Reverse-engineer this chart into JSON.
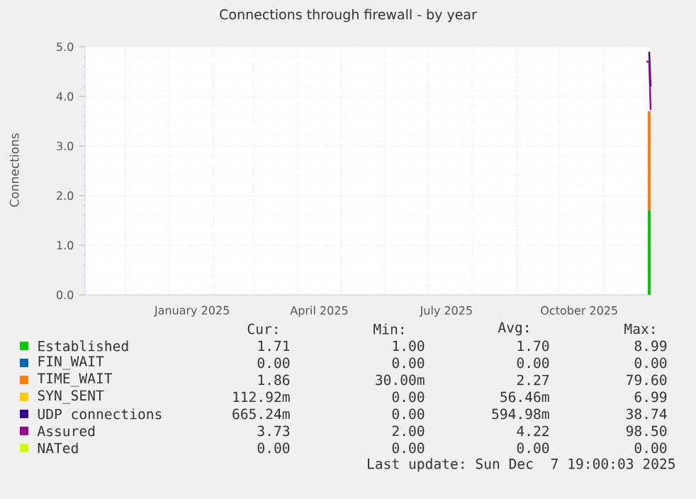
{
  "chart_data": {
    "type": "area",
    "title": "Connections through firewall - by year",
    "ylabel": "Connections",
    "stacked": true,
    "grid": true,
    "legend": "bottom",
    "xlim": [
      "2024-11-03",
      "2025-12-04"
    ],
    "ylim": [
      0,
      5
    ],
    "xticks": [
      {
        "value": "2025-01-17",
        "label": "January 2025"
      },
      {
        "value": "2025-04-16",
        "label": "April 2025"
      },
      {
        "value": "2025-07-14",
        "label": "July 2025"
      },
      {
        "value": "2025-10-15",
        "label": "October 2025"
      },
      {
        "value": "2024-12-01",
        "label": null
      },
      {
        "value": "2025-01-01",
        "label": null
      },
      {
        "value": "2025-02-01",
        "label": null
      },
      {
        "value": "2025-03-01",
        "label": null
      },
      {
        "value": "2025-04-01",
        "label": null
      },
      {
        "value": "2025-05-01",
        "label": null
      },
      {
        "value": "2025-06-01",
        "label": null
      },
      {
        "value": "2025-07-01",
        "label": null
      },
      {
        "value": "2025-08-01",
        "label": null
      },
      {
        "value": "2025-09-01",
        "label": null
      },
      {
        "value": "2025-10-01",
        "label": null
      },
      {
        "value": "2025-11-01",
        "label": null
      },
      {
        "value": "2025-12-01",
        "label": null
      }
    ],
    "yticks": [
      {
        "value": 0,
        "label": "0.0"
      },
      {
        "value": 1,
        "label": "1.0"
      },
      {
        "value": 2,
        "label": "2.0"
      },
      {
        "value": 3,
        "label": "3.0"
      },
      {
        "value": 4,
        "label": "4.0"
      },
      {
        "value": 5,
        "label": "5.0"
      }
    ],
    "x": [
      "2025-12-02",
      "2025-12-04"
    ],
    "series": [
      {
        "name": "Established",
        "color": "#00cc00",
        "values": [
          1.7,
          1.7
        ]
      },
      {
        "name": "FIN_WAIT",
        "color": "#0066b3",
        "values": [
          null,
          null
        ]
      },
      {
        "name": "TIME_WAIT",
        "color": "#ff8000",
        "values": [
          2.0,
          2.0
        ]
      },
      {
        "name": "SYN_SENT",
        "color": "#ffcc00",
        "values": [
          null,
          null
        ]
      },
      {
        "name": "UDP connections",
        "color": "#330099",
        "type": "line",
        "x": [
          "2025-12-03",
          "2025-12-04"
        ],
        "values": [
          4.9,
          4.2
        ]
      },
      {
        "name": "Assured",
        "color": "#990099",
        "type": "line",
        "x": [
          "2025-12-01",
          "2025-12-03",
          "2025-12-04"
        ],
        "values": [
          4.7,
          4.7,
          3.73
        ]
      },
      {
        "name": "NATed",
        "color": "#ccff00",
        "type": "line",
        "values": [
          null,
          null
        ]
      }
    ],
    "annotations": [
      "Cur:",
      "Min:",
      "Avg:",
      "Max:",
      "1.71",
      "1.00",
      "1.70",
      "8.99",
      "0.00",
      "0.00",
      "0.00",
      "0.00",
      "1.86",
      "30.00m",
      "2.27",
      "79.60",
      "112.92m",
      "0.00",
      "56.46m",
      "6.99",
      "665.24m",
      "0.00",
      "594.98m",
      "38.74",
      "3.73",
      "2.00",
      "4.22",
      "98.50",
      "0.00",
      "0.00",
      "0.00",
      "0.00",
      "Last update: Sun Dec  7 19:00:03 2025"
    ]
  }
}
